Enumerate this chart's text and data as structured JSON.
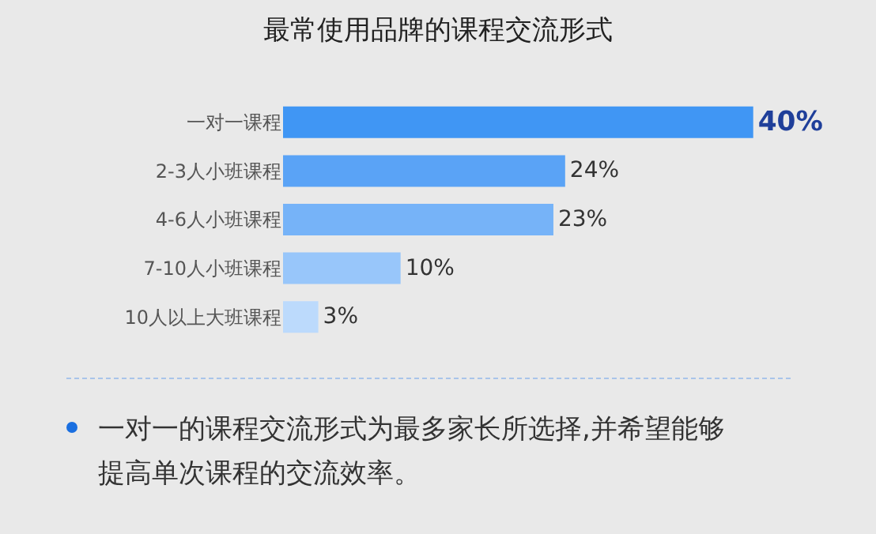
{
  "chart_data": {
    "type": "bar",
    "orientation": "horizontal",
    "title": "最常使用品牌的课程交流形式",
    "categories": [
      "一对一课程",
      "2-3人小班课程",
      "4-6人小班课程",
      "7-10人小班课程",
      "10人以上大班课程"
    ],
    "values": [
      40,
      24,
      23,
      10,
      3
    ],
    "colors": [
      "#4096f4",
      "#5aa3f6",
      "#76b3f8",
      "#98c6fa",
      "#bcdafc"
    ],
    "value_labels": [
      "40%",
      "24%",
      "23%",
      "10%",
      "3%"
    ],
    "annotations": [
      "一对一的课程交流形式为最多家长所选择,并希望能够提高单次课程的交流效率。"
    ]
  }
}
